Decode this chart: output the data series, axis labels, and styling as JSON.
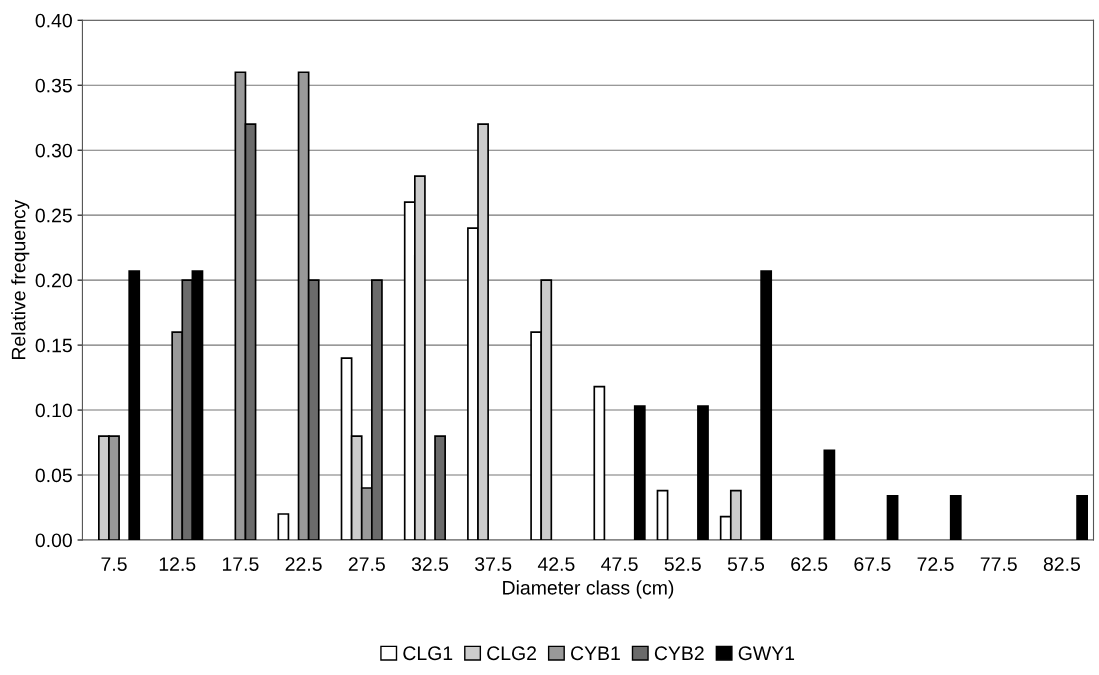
{
  "chart_data": {
    "type": "bar",
    "xlabel": "Diameter class (cm)",
    "ylabel": "Relative frequency",
    "categories": [
      "7.5",
      "12.5",
      "17.5",
      "22.5",
      "27.5",
      "32.5",
      "37.5",
      "42.5",
      "47.5",
      "52.5",
      "57.5",
      "62.5",
      "67.5",
      "72.5",
      "77.5",
      "82.5"
    ],
    "series": [
      {
        "name": "CLG1",
        "color": "#ffffff",
        "values": [
          null,
          null,
          null,
          0.02,
          0.14,
          0.26,
          0.24,
          0.16,
          0.118,
          0.038,
          0.018,
          null,
          null,
          null,
          null,
          null
        ]
      },
      {
        "name": "CLG2",
        "color": "#cccccc",
        "values": [
          0.08,
          null,
          null,
          null,
          0.08,
          0.28,
          0.32,
          0.2,
          null,
          null,
          0.038,
          null,
          null,
          null,
          null,
          null
        ]
      },
      {
        "name": "CYB1",
        "color": "#999999",
        "values": [
          0.08,
          0.16,
          0.36,
          0.36,
          0.04,
          null,
          null,
          null,
          null,
          null,
          null,
          null,
          null,
          null,
          null,
          null
        ]
      },
      {
        "name": "CYB2",
        "color": "#6b6b6b",
        "values": [
          null,
          0.2,
          0.32,
          0.2,
          0.2,
          0.08,
          null,
          null,
          null,
          null,
          null,
          null,
          null,
          null,
          null,
          null
        ]
      },
      {
        "name": "GWY1",
        "color": "#000000",
        "values": [
          0.207,
          0.207,
          null,
          null,
          null,
          null,
          null,
          null,
          0.103,
          0.103,
          0.207,
          0.069,
          0.034,
          0.034,
          null,
          0.034
        ]
      }
    ],
    "ylim": [
      0,
      0.4
    ],
    "yticks": [
      {
        "value": 0,
        "label": "0.00"
      },
      {
        "value": 0.05,
        "label": "0.05"
      },
      {
        "value": 0.1,
        "label": "0.10"
      },
      {
        "value": 0.15,
        "label": "0.15"
      },
      {
        "value": 0.2,
        "label": "0.20"
      },
      {
        "value": 0.25,
        "label": "0.25"
      },
      {
        "value": 0.3,
        "label": "0.30"
      },
      {
        "value": 0.35,
        "label": "0.35"
      },
      {
        "value": 0.4,
        "label": "0.40"
      }
    ],
    "grid": "y",
    "legend": "bottom"
  }
}
